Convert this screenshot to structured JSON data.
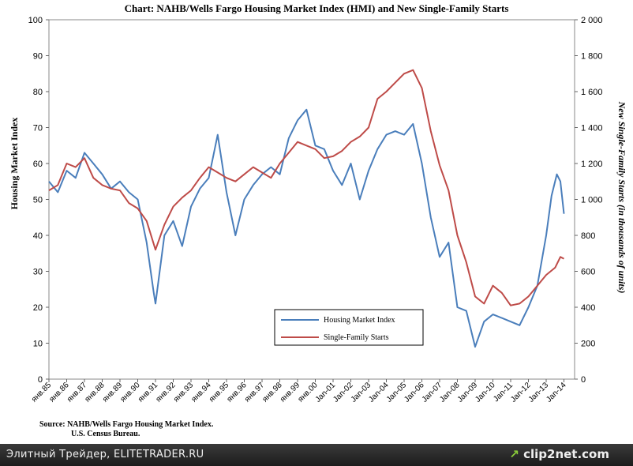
{
  "chart_data": {
    "type": "line",
    "title": "Chart:  NAHB/Wells Fargo Housing Market Index (HMI) and New Single-Family Starts",
    "ylabel_left": "Housing Market Index",
    "ylabel_right": "New Single-Family Starts (in thousands of units)",
    "left_axis": {
      "min": 0,
      "max": 100,
      "ticks": [
        "0",
        "10",
        "20",
        "30",
        "40",
        "50",
        "60",
        "70",
        "80",
        "90",
        "100"
      ]
    },
    "right_axis": {
      "min": 0,
      "max": 2000,
      "ticks": [
        "0",
        "200",
        "400",
        "600",
        "800",
        "1 000",
        "1 200",
        "1 400",
        "1 600",
        "1 800",
        "2 000"
      ]
    },
    "x_ticks": [
      "янв.85",
      "янв.86",
      "янв.87",
      "янв.88",
      "янв.89",
      "янв.90",
      "янв.91",
      "янв.92",
      "янв.93",
      "янв.94",
      "янв.95",
      "янв.96",
      "янв.97",
      "янв.98",
      "янв.99",
      "янв.00",
      "Jan-01",
      "Jan-02",
      "Jan-03",
      "Jan-04",
      "Jan-05",
      "Jan-06",
      "Jan-07",
      "Jan-08",
      "Jan-09",
      "Jan-10",
      "Jan-11",
      "Jan-12",
      "Jan-13",
      "Jan-14"
    ],
    "legend_position": "bottom-center",
    "grid": false,
    "series": [
      {
        "name": "Housing Market Index",
        "axis": "left",
        "color": "#4a7ebb",
        "x": [
          1985.0,
          1985.5,
          1986.0,
          1986.5,
          1987.0,
          1987.5,
          1988.0,
          1988.5,
          1989.0,
          1989.5,
          1990.0,
          1990.5,
          1990.9,
          1991.0,
          1991.5,
          1992.0,
          1992.5,
          1993.0,
          1993.5,
          1994.0,
          1994.5,
          1995.0,
          1995.5,
          1996.0,
          1996.5,
          1997.0,
          1997.5,
          1998.0,
          1998.5,
          1999.0,
          1999.5,
          2000.0,
          2000.5,
          2001.0,
          2001.5,
          2002.0,
          2002.5,
          2003.0,
          2003.5,
          2004.0,
          2004.5,
          2005.0,
          2005.5,
          2006.0,
          2006.5,
          2007.0,
          2007.5,
          2008.0,
          2008.5,
          2009.0,
          2009.5,
          2010.0,
          2010.5,
          2011.0,
          2011.5,
          2012.0,
          2012.5,
          2013.0,
          2013.3,
          2013.6,
          2013.8,
          2014.0
        ],
        "values": [
          55,
          52,
          58,
          56,
          63,
          60,
          57,
          53,
          55,
          52,
          50,
          38,
          24,
          21,
          40,
          44,
          37,
          48,
          53,
          56,
          68,
          52,
          40,
          50,
          54,
          57,
          59,
          57,
          67,
          72,
          75,
          65,
          64,
          58,
          54,
          60,
          50,
          58,
          64,
          68,
          69,
          68,
          71,
          60,
          45,
          34,
          38,
          20,
          19,
          9,
          16,
          18,
          17,
          16,
          15,
          20,
          26,
          40,
          51,
          57,
          55,
          46
        ]
      },
      {
        "name": "Single-Family Starts",
        "axis": "right",
        "color": "#be4b48",
        "x": [
          1985.0,
          1985.5,
          1986.0,
          1986.5,
          1987.0,
          1987.5,
          1988.0,
          1988.5,
          1989.0,
          1989.5,
          1990.0,
          1990.5,
          1991.0,
          1991.5,
          1992.0,
          1992.5,
          1993.0,
          1993.5,
          1994.0,
          1994.5,
          1995.0,
          1995.5,
          1996.0,
          1996.5,
          1997.0,
          1997.5,
          1998.0,
          1998.5,
          1999.0,
          1999.5,
          2000.0,
          2000.5,
          2001.0,
          2001.5,
          2002.0,
          2002.5,
          2003.0,
          2003.5,
          2004.0,
          2004.5,
          2005.0,
          2005.5,
          2006.0,
          2006.5,
          2007.0,
          2007.5,
          2008.0,
          2008.5,
          2009.0,
          2009.5,
          2010.0,
          2010.5,
          2011.0,
          2011.5,
          2012.0,
          2012.5,
          2013.0,
          2013.5,
          2013.8,
          2014.0
        ],
        "values": [
          1050,
          1080,
          1200,
          1180,
          1230,
          1120,
          1080,
          1060,
          1050,
          980,
          950,
          880,
          720,
          860,
          960,
          1010,
          1050,
          1120,
          1180,
          1150,
          1120,
          1100,
          1140,
          1180,
          1150,
          1120,
          1200,
          1260,
          1320,
          1300,
          1280,
          1230,
          1240,
          1270,
          1320,
          1350,
          1400,
          1560,
          1600,
          1650,
          1700,
          1720,
          1620,
          1380,
          1190,
          1050,
          800,
          650,
          460,
          420,
          520,
          480,
          410,
          420,
          460,
          520,
          580,
          620,
          680,
          670
        ]
      }
    ],
    "source": [
      "Source: NAHB/Wells Fargo Housing Market Index.",
      "U.S. Census Bureau."
    ]
  },
  "footer": {
    "left_text": "Элитный Трейдер, ELITETRADER.RU",
    "logo_text": "clip2net.com"
  }
}
